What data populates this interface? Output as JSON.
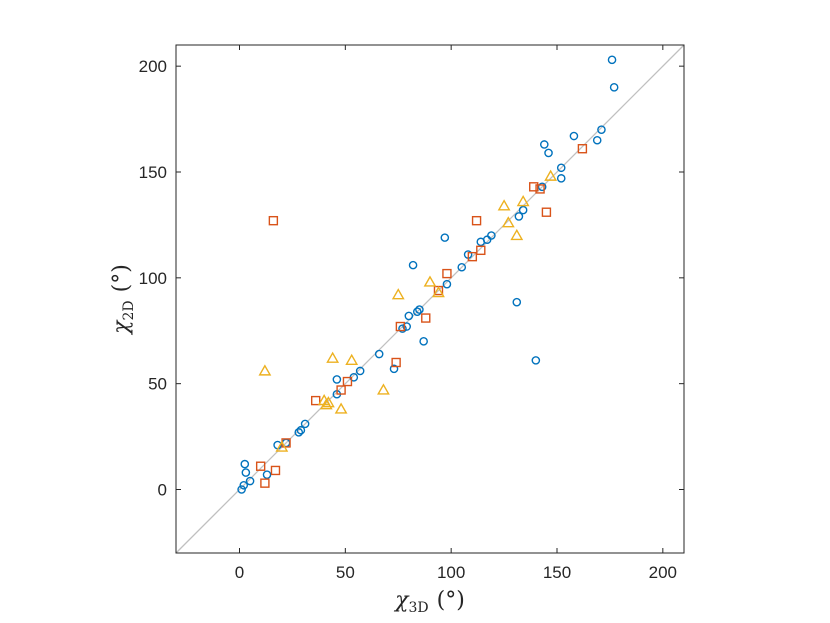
{
  "chart_data": {
    "type": "scatter",
    "xlabel": {
      "symbol": "χ",
      "subscript": "3D",
      "unit": "(°)"
    },
    "ylabel": {
      "symbol": "χ",
      "subscript": "2D",
      "unit": "(°)"
    },
    "xlim": [
      -30,
      210
    ],
    "ylim": [
      -30,
      210
    ],
    "xticks": [
      0,
      50,
      100,
      150,
      200
    ],
    "yticks": [
      0,
      50,
      100,
      150,
      200
    ],
    "grid": false,
    "legend": "none",
    "reference_line": {
      "from": [
        -30,
        -30
      ],
      "to": [
        210,
        210
      ],
      "color": "#c0c0c0"
    },
    "series": [
      {
        "marker": "circle",
        "color": "#0072BD",
        "points": [
          [
            1,
            0
          ],
          [
            2,
            2
          ],
          [
            2.5,
            12
          ],
          [
            3,
            8
          ],
          [
            5,
            4
          ],
          [
            13,
            7
          ],
          [
            18,
            21
          ],
          [
            22,
            22
          ],
          [
            28,
            27
          ],
          [
            29,
            28
          ],
          [
            31,
            31
          ],
          [
            46,
            45
          ],
          [
            46,
            52
          ],
          [
            54,
            53
          ],
          [
            57,
            56
          ],
          [
            66,
            64
          ],
          [
            73,
            57
          ],
          [
            77,
            76
          ],
          [
            79,
            77
          ],
          [
            80,
            82
          ],
          [
            82,
            106
          ],
          [
            84,
            84
          ],
          [
            85,
            85
          ],
          [
            87,
            70
          ],
          [
            97,
            119
          ],
          [
            98,
            97
          ],
          [
            105,
            105
          ],
          [
            108,
            111
          ],
          [
            114,
            117
          ],
          [
            117,
            118
          ],
          [
            119,
            120
          ],
          [
            131,
            88.5
          ],
          [
            132,
            129
          ],
          [
            134,
            132
          ],
          [
            140,
            61
          ],
          [
            143,
            143
          ],
          [
            144,
            163
          ],
          [
            146,
            159
          ],
          [
            152,
            147
          ],
          [
            152,
            152
          ],
          [
            158,
            167
          ],
          [
            169,
            165
          ],
          [
            171,
            170
          ],
          [
            176,
            203
          ],
          [
            177,
            190
          ]
        ]
      },
      {
        "marker": "square",
        "color": "#D95319",
        "points": [
          [
            10,
            11
          ],
          [
            12,
            3
          ],
          [
            16,
            127
          ],
          [
            17,
            9
          ],
          [
            22,
            22
          ],
          [
            36,
            42
          ],
          [
            48,
            47
          ],
          [
            51,
            51
          ],
          [
            74,
            60
          ],
          [
            76,
            77
          ],
          [
            88,
            81
          ],
          [
            94,
            94
          ],
          [
            98,
            102
          ],
          [
            110,
            110
          ],
          [
            112,
            127
          ],
          [
            114,
            113
          ],
          [
            139,
            143
          ],
          [
            142,
            142
          ],
          [
            145,
            131
          ],
          [
            162,
            161
          ]
        ]
      },
      {
        "marker": "triangle",
        "color": "#EDB120",
        "points": [
          [
            12,
            56
          ],
          [
            20,
            20
          ],
          [
            40,
            42
          ],
          [
            41,
            40
          ],
          [
            42,
            41
          ],
          [
            44,
            62
          ],
          [
            48,
            38
          ],
          [
            53,
            61
          ],
          [
            68,
            47
          ],
          [
            75,
            92
          ],
          [
            90,
            98
          ],
          [
            94,
            93
          ],
          [
            125,
            134
          ],
          [
            127,
            126
          ],
          [
            131,
            120
          ],
          [
            134,
            136
          ],
          [
            147,
            148
          ]
        ]
      }
    ]
  }
}
